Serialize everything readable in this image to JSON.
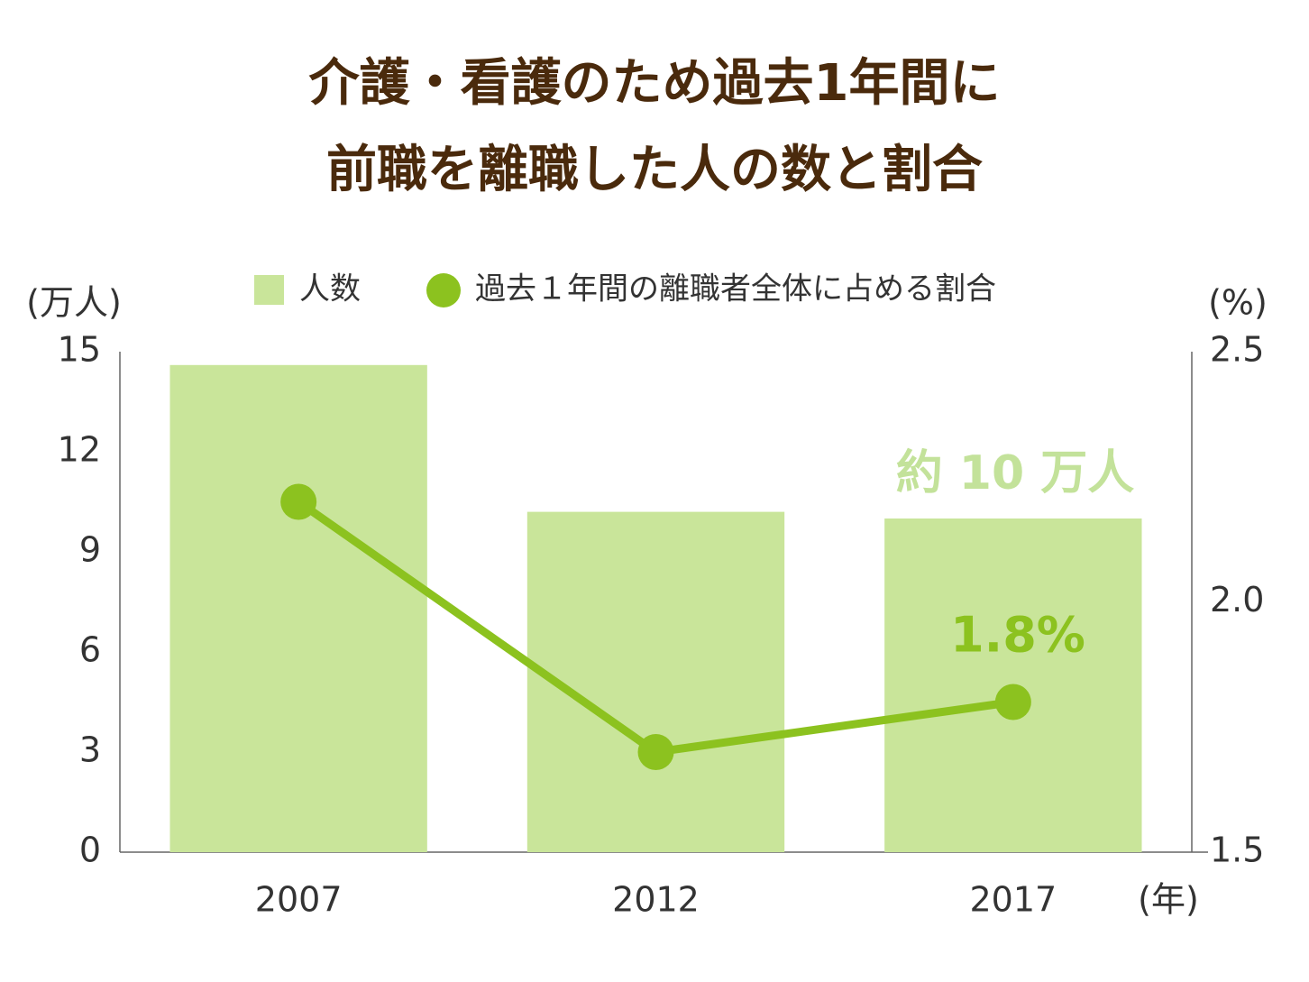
{
  "chart_data": {
    "type": "bar-line",
    "title": [
      "介護・看護のため過去1年間に",
      "前職を離職した人の数と割合"
    ],
    "ylabel": "(万人)",
    "y2label": "(%)",
    "xlabel": "(年)",
    "categories": [
      "2007",
      "2012",
      "2017"
    ],
    "series": [
      {
        "name": "人数",
        "color": "#c9e59a",
        "type": "bar",
        "values": [
          14.6,
          10.2,
          10.0
        ]
      },
      {
        "name": "過去１年間の離職者全体に占める割合",
        "color": "#8cc21f",
        "type": "line",
        "axis": "y2",
        "values": [
          2.2,
          1.7,
          1.8
        ]
      }
    ],
    "ylim": [
      0,
      15
    ],
    "yticks": [
      0,
      3,
      6,
      9,
      12,
      15
    ],
    "y2lim": [
      1.5,
      2.5
    ],
    "y2ticks": [
      1.5,
      {
        "value": 2,
        "label": "2.0"
      },
      2.5
    ],
    "annotations": [
      {
        "text": "約 10 万人",
        "color": "#c3e29a"
      },
      {
        "text": "1.8%",
        "color": "#8cc21f"
      }
    ],
    "grid": false
  }
}
